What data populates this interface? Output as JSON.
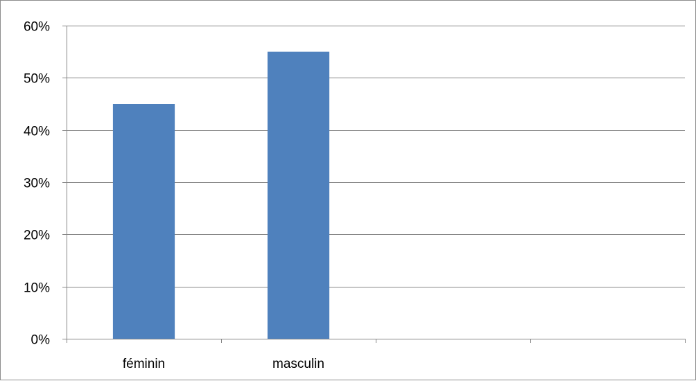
{
  "chart_data": {
    "type": "bar",
    "categories": [
      "féminin",
      "masculin",
      "",
      ""
    ],
    "series": [
      {
        "values": [
          0.45,
          0.55,
          null,
          null
        ],
        "color": "#4f81bd"
      }
    ],
    "ylim": [
      0,
      0.6
    ],
    "yticks": [
      0,
      0.1,
      0.2,
      0.3,
      0.4,
      0.5,
      0.6
    ],
    "ytick_labels": [
      "0%",
      "10%",
      "20%",
      "30%",
      "40%",
      "50%",
      "60%"
    ],
    "y_format": "percent",
    "grid": true,
    "legend": "none",
    "title": "",
    "xlabel": "",
    "ylabel": ""
  }
}
